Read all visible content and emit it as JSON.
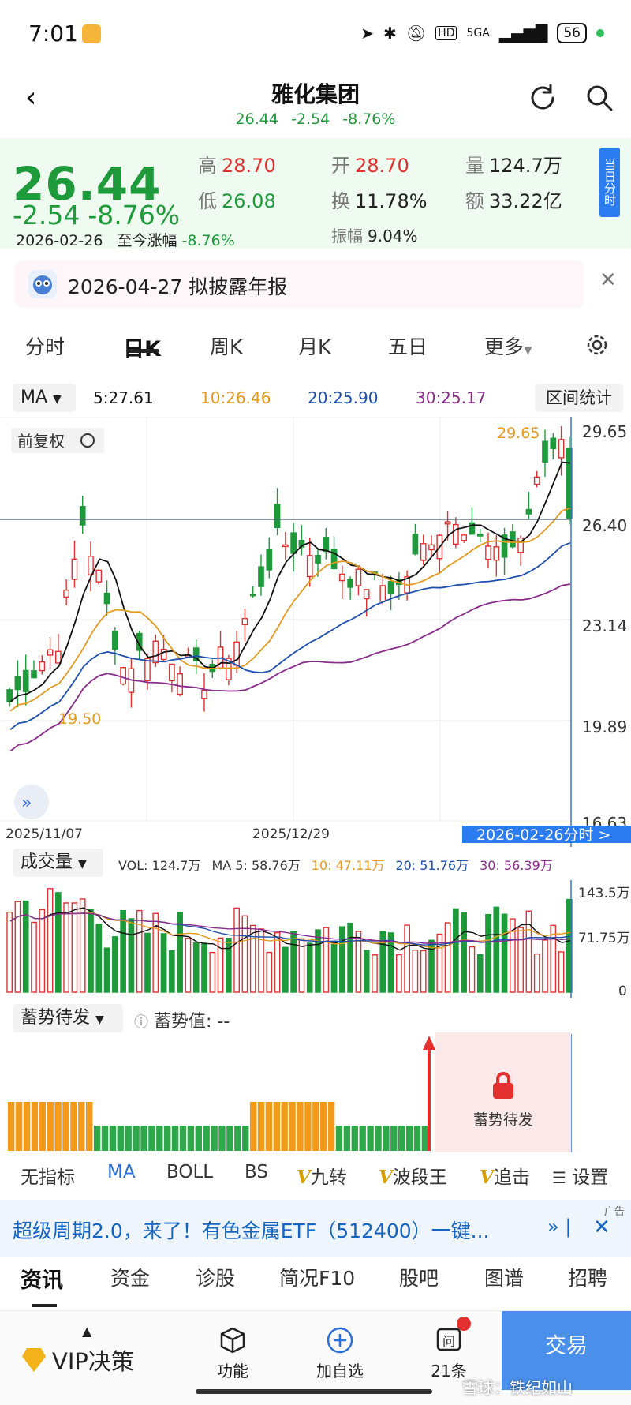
{
  "status_bar": {
    "time": "7:01",
    "network": "5GA",
    "hd": "HD",
    "battery": "56"
  },
  "header": {
    "stock_name": "雅化集团",
    "price": "26.44",
    "change": "-2.54",
    "change_pct": "-8.76%"
  },
  "quote": {
    "price": "26.44",
    "change": "-2.54",
    "change_pct": "-8.76%",
    "date": "2026-02-26",
    "since_label": "至今涨幅",
    "since_value": "-8.76%",
    "high_label": "高",
    "high": "28.70",
    "low_label": "低",
    "low": "26.08",
    "open_label": "开",
    "open": "28.70",
    "turnover_label": "换",
    "turnover": "11.78%",
    "volume_label": "量",
    "volume": "124.7万",
    "amount_label": "额",
    "amount": "33.22亿",
    "amplitude_label": "振幅",
    "amplitude": "9.04%",
    "intraday_tab": "当日分时"
  },
  "notice": {
    "text": "2026-04-27 拟披露年报"
  },
  "tabs": [
    {
      "label": "分时"
    },
    {
      "label": "日K"
    },
    {
      "label": "周K"
    },
    {
      "label": "月K"
    },
    {
      "label": "五日"
    },
    {
      "label": "更多"
    }
  ],
  "ma_row": {
    "select": "MA",
    "ma5": "5:27.61",
    "ma10": "10:26.46",
    "ma20": "20:25.90",
    "ma30": "30:25.17",
    "interval_stats": "区间统计"
  },
  "kline": {
    "adjust_label": "前复权",
    "price_axis": [
      "29.65",
      "26.40",
      "23.14",
      "19.89",
      "16.63"
    ],
    "date_labels": [
      "2025/11/07",
      "2025/12/29"
    ],
    "current_date_label": "2026-02-26分时 >",
    "max_label": "29.65",
    "min_label": "19.50"
  },
  "volume": {
    "select": "成交量",
    "vol": "VOL: 124.7万",
    "ma5": "MA 5: 58.76万",
    "ma10": "10: 47.11万",
    "ma20": "20: 51.76万",
    "ma30": "30: 56.39万",
    "axis": [
      "143.5万",
      "71.75万",
      "0"
    ]
  },
  "indicator": {
    "select": "蓄势待发",
    "value_label": "蓄势值: --",
    "pending_text": "蓄势待发"
  },
  "indicator_chips": {
    "none": "无指标",
    "ma": "MA",
    "boll": "BOLL",
    "bs": "BS",
    "nine": "九转",
    "wave": "波段王",
    "chase": "追击",
    "settings": "设置"
  },
  "ad": {
    "tag": "广告",
    "text": "超级周期2.0，来了！有色金属ETF（512400）一键..."
  },
  "info_tabs": [
    "资讯",
    "资金",
    "诊股",
    "简况F10",
    "股吧",
    "图谱",
    "招聘"
  ],
  "bottom_nav": {
    "vip": "VIP决策",
    "function": "功能",
    "add_watch": "加自选",
    "ask": "21条",
    "trade": "交易"
  },
  "watermark": "雪球：铁纪如山",
  "colors": {
    "up": "#e03030",
    "down": "#1f9a3a",
    "ma5": "#111111",
    "ma10": "#e39a1e",
    "ma20": "#1e4fb0",
    "ma30": "#8a2a8a",
    "accent": "#2b7cf0"
  }
}
